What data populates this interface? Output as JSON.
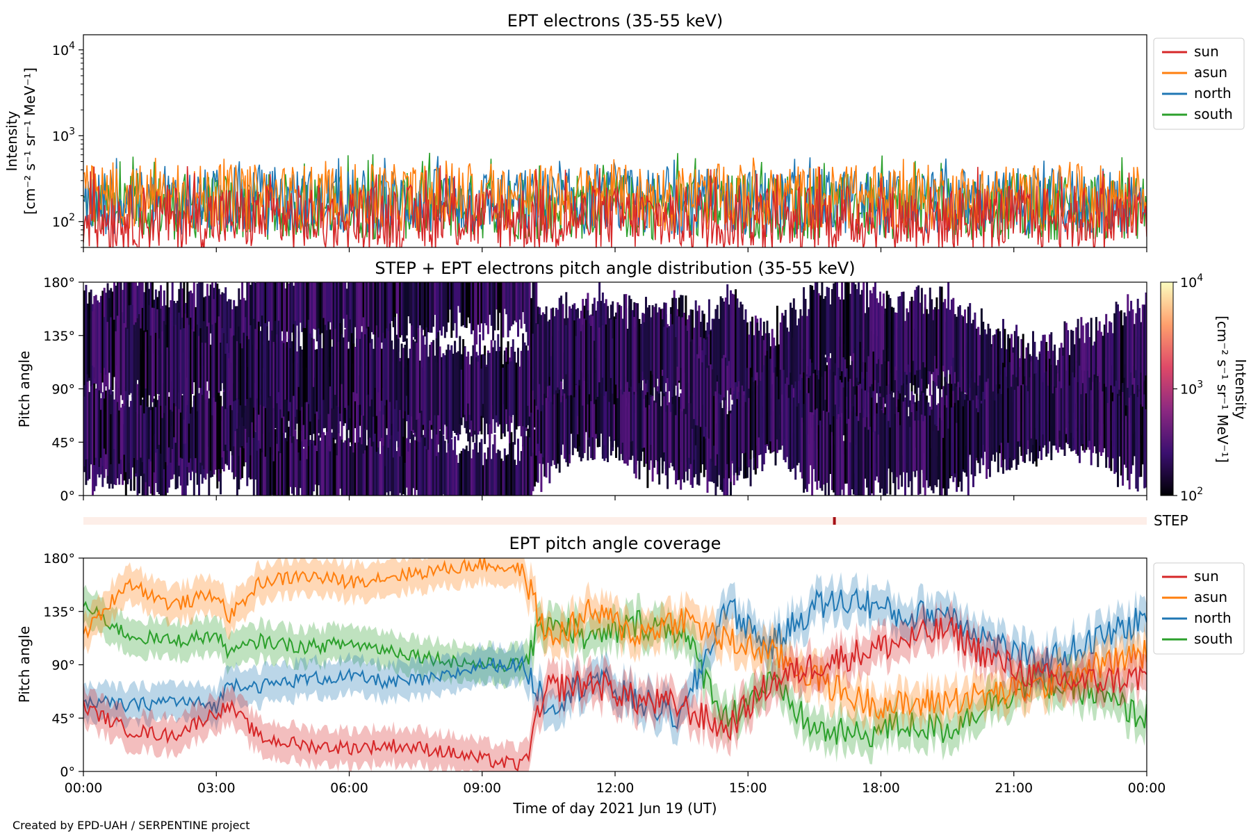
{
  "colors": {
    "sun": "#d62728",
    "asun": "#ff7f0e",
    "north": "#1f77b4",
    "south": "#2ca02c",
    "step_bar": "#fdeee8",
    "step_mark": "#a50f15"
  },
  "credit": "Created by EPD-UAH / SERPENTINE project",
  "x_axis": {
    "label": "Time of day 2021 Jun 19 (UT)",
    "ticks": [
      "00:00",
      "03:00",
      "06:00",
      "09:00",
      "12:00",
      "15:00",
      "18:00",
      "21:00",
      "00:00"
    ],
    "range_hours": [
      0,
      24
    ]
  },
  "chart_data": [
    {
      "type": "line",
      "title": "EPT electrons (35-55 keV)",
      "ylabel_line1": "Intensity",
      "ylabel_line2": "[cm⁻² s⁻¹ sr⁻¹ MeV⁻¹]",
      "yscale": "log",
      "ylim": [
        50,
        15000
      ],
      "yticks": [
        {
          "value": 100,
          "base": "10",
          "exp": "2"
        },
        {
          "value": 1000,
          "base": "10",
          "exp": "3"
        },
        {
          "value": 10000,
          "base": "10",
          "exp": "4"
        }
      ],
      "legend_position": "outside-right-top",
      "series": [
        {
          "name": "sun",
          "baseline": 110,
          "spread": 0.45,
          "peak": 460
        },
        {
          "name": "asun",
          "baseline": 190,
          "spread": 0.45,
          "peak": 560
        },
        {
          "name": "north",
          "baseline": 170,
          "spread": 0.45,
          "peak": 600
        },
        {
          "name": "south",
          "baseline": 150,
          "spread": 0.45,
          "peak": 640
        }
      ]
    },
    {
      "type": "heatmap",
      "title": "STEP + EPT electrons pitch angle distribution (35-55 keV)",
      "ylabel": "Pitch angle",
      "yticks": [
        "0°",
        "45°",
        "90°",
        "135°",
        "180°"
      ],
      "ylim": [
        0,
        180
      ],
      "colorbar": {
        "label_line1": "Intensity",
        "label_line2": "[cm⁻² s⁻¹ sr⁻¹ MeV⁻¹]",
        "scale": "log",
        "range": [
          100,
          10000
        ],
        "ticks": [
          {
            "base": "10",
            "exp": "2"
          },
          {
            "base": "10",
            "exp": "3"
          },
          {
            "base": "10",
            "exp": "4"
          }
        ]
      }
    },
    {
      "type": "bar",
      "label": "STEP",
      "marker_time_hours": 16.95
    },
    {
      "type": "line",
      "title": "EPT pitch angle coverage",
      "ylabel": "Pitch angle",
      "yticks": [
        "0°",
        "45°",
        "90°",
        "135°",
        "180°"
      ],
      "ylim": [
        0,
        180
      ],
      "legend_position": "outside-right-top",
      "series": [
        {
          "name": "sun",
          "x_hours": [
            0,
            1,
            2,
            3,
            3.3,
            4,
            5,
            6,
            7,
            8,
            9,
            9.9,
            10.5,
            11.5,
            12.5,
            13.5,
            14.5,
            15.5,
            16.5,
            17.5,
            18.5,
            19.5,
            20.5,
            21.5,
            22.5,
            24
          ],
          "values": [
            55,
            35,
            30,
            50,
            55,
            28,
            22,
            20,
            22,
            18,
            10,
            5,
            70,
            75,
            60,
            55,
            35,
            75,
            90,
            100,
            110,
            120,
            95,
            80,
            75,
            80
          ]
        },
        {
          "name": "asun",
          "x_hours": [
            0,
            1,
            2,
            3,
            3.3,
            4,
            5,
            6,
            7,
            8,
            9,
            9.9,
            10.5,
            11.5,
            12.5,
            13.5,
            14.5,
            15.5,
            16.5,
            17.5,
            18.5,
            19.5,
            20.5,
            21.5,
            22.5,
            24
          ],
          "values": [
            115,
            160,
            140,
            150,
            130,
            160,
            165,
            160,
            165,
            170,
            175,
            170,
            110,
            135,
            115,
            130,
            110,
            100,
            80,
            60,
            55,
            60,
            65,
            70,
            85,
            100
          ]
        },
        {
          "name": "north",
          "x_hours": [
            0,
            1,
            2,
            3,
            3.3,
            4,
            5,
            6,
            7,
            8,
            9,
            9.9,
            10.5,
            11.5,
            12.5,
            13.5,
            14.5,
            15.5,
            16.5,
            17.5,
            18.5,
            19.5,
            20.5,
            21.5,
            22.5,
            24
          ],
          "values": [
            60,
            55,
            60,
            55,
            75,
            72,
            78,
            80,
            75,
            78,
            90,
            90,
            55,
            80,
            60,
            45,
            140,
            105,
            140,
            145,
            130,
            135,
            110,
            90,
            105,
            130
          ]
        },
        {
          "name": "south",
          "x_hours": [
            0,
            1,
            2,
            3,
            3.3,
            4,
            5,
            6,
            7,
            8,
            9,
            9.9,
            10.5,
            11.5,
            12.5,
            13.5,
            14.5,
            15.5,
            16.5,
            17.5,
            18.5,
            19.5,
            20.5,
            21.5,
            22.5,
            24
          ],
          "values": [
            140,
            115,
            110,
            115,
            100,
            110,
            105,
            108,
            102,
            95,
            90,
            90,
            130,
            110,
            125,
            120,
            45,
            75,
            35,
            30,
            40,
            35,
            60,
            75,
            70,
            45
          ]
        }
      ]
    }
  ]
}
